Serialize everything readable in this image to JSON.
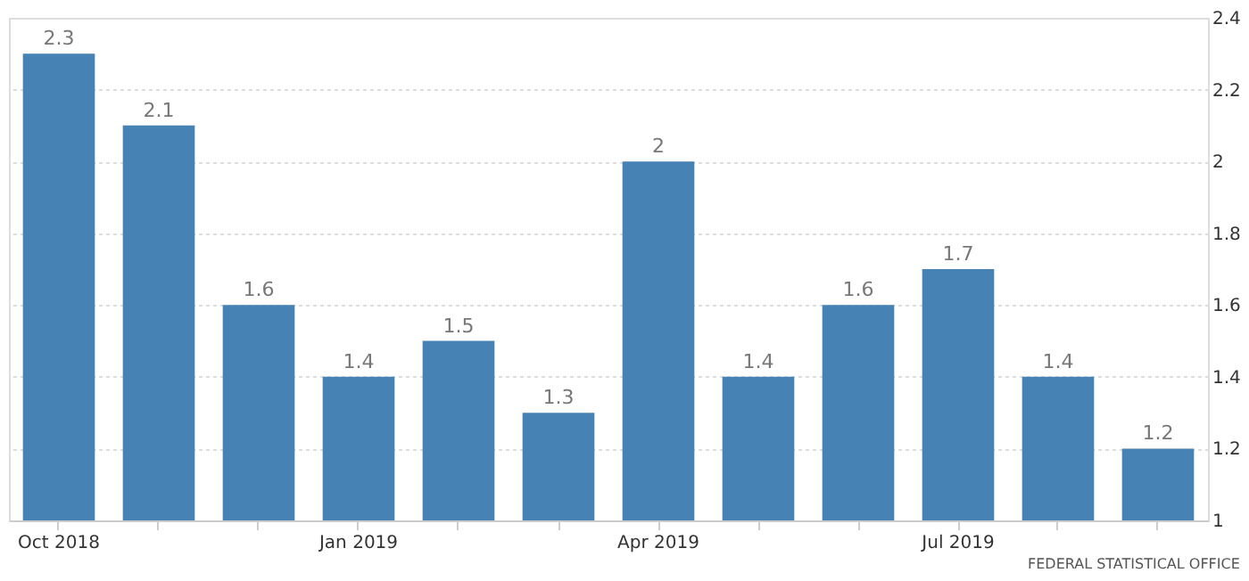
{
  "chart_data": {
    "type": "bar",
    "categories": [
      "Oct 2018",
      null,
      null,
      "Jan 2019",
      null,
      null,
      "Apr 2019",
      null,
      null,
      "Jul 2019",
      null,
      null
    ],
    "values": [
      2.3,
      2.1,
      1.6,
      1.4,
      1.5,
      1.3,
      2,
      1.4,
      1.6,
      1.7,
      1.4,
      1.2
    ],
    "color": "#4682b4",
    "ylim": [
      1,
      2.4
    ],
    "yticks": [
      1,
      1.2,
      1.4,
      1.6,
      1.8,
      2,
      2.2,
      2.4
    ],
    "grid": "y",
    "data_labels": true,
    "annotations": [
      "FEDERAL STATISTICAL OFFICE"
    ]
  }
}
